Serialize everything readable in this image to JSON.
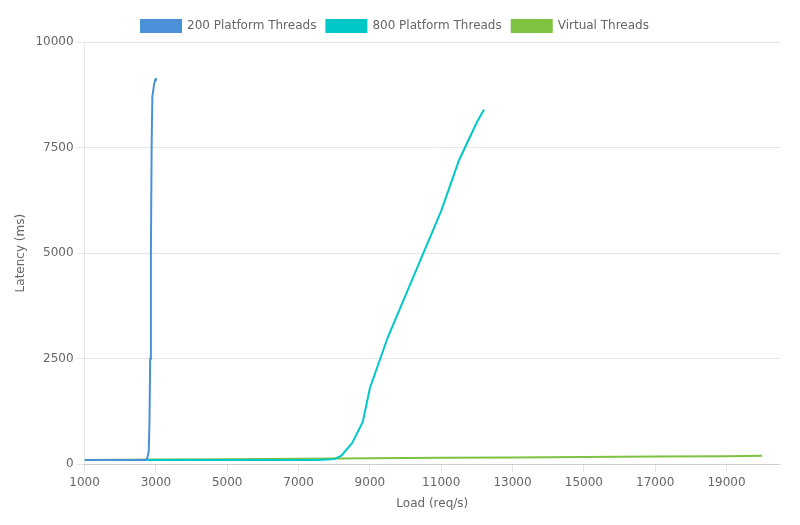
{
  "chart_data": {
    "type": "line",
    "xlabel": "Load (req/s)",
    "ylabel": "Latency (ms)",
    "series": [
      {
        "name": "200 Platform Threads",
        "color": "#4a90d9",
        "x": [
          1000,
          1500,
          1800,
          2000,
          2200,
          2400,
          2600,
          2700,
          2750,
          2800,
          2820,
          2840,
          2860,
          2880,
          2900,
          2950,
          2980,
          3000
        ],
        "values": [
          100,
          100,
          100,
          100,
          100,
          100,
          100,
          100,
          120,
          300,
          1000,
          2500,
          5000,
          7500,
          8700,
          9000,
          9100,
          9150
        ]
      },
      {
        "name": "800 Platform Threads",
        "color": "#00c8c8",
        "x": [
          1000,
          2000,
          3000,
          4000,
          5000,
          6000,
          7000,
          7500,
          7800,
          8000,
          8200,
          8500,
          8800,
          9000,
          9500,
          10000,
          10500,
          11000,
          11500,
          12000,
          12200
        ],
        "values": [
          100,
          100,
          100,
          100,
          100,
          100,
          100,
          100,
          110,
          120,
          200,
          500,
          1000,
          1800,
          3000,
          4000,
          5000,
          6000,
          7200,
          8100,
          8400
        ]
      },
      {
        "name": "Virtual Threads",
        "color": "#7dc241",
        "x": [
          1000,
          3000,
          5000,
          7000,
          9000,
          11000,
          13000,
          15000,
          17000,
          19000,
          20000
        ],
        "values": [
          100,
          110,
          120,
          130,
          140,
          150,
          160,
          170,
          180,
          190,
          200
        ]
      }
    ],
    "xlim": [
      1000,
      20500
    ],
    "ylim": [
      0,
      10000
    ],
    "xticks": [
      1000,
      3000,
      5000,
      7000,
      9000,
      11000,
      13000,
      15000,
      17000,
      19000
    ],
    "yticks": [
      0,
      2500,
      5000,
      7500,
      10000
    ],
    "grid": "y",
    "legend": "top"
  }
}
